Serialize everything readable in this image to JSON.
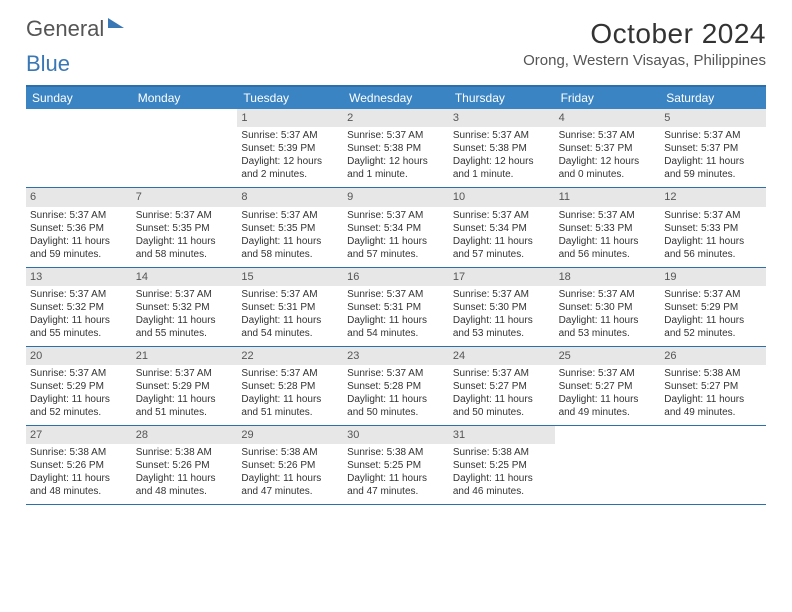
{
  "logo": {
    "part1": "General",
    "part2": "Blue"
  },
  "header": {
    "month": "October 2024",
    "location": "Orong, Western Visayas, Philippines"
  },
  "colors": {
    "accent": "#3a84c4",
    "border": "#2d6fa8",
    "daybg": "#e7e7e7",
    "text": "#333333"
  },
  "daynames": [
    "Sunday",
    "Monday",
    "Tuesday",
    "Wednesday",
    "Thursday",
    "Friday",
    "Saturday"
  ],
  "weeks": [
    [
      {
        "empty": true
      },
      {
        "empty": true
      },
      {
        "n": "1",
        "sr": "Sunrise: 5:37 AM",
        "ss": "Sunset: 5:39 PM",
        "dl": "Daylight: 12 hours and 2 minutes."
      },
      {
        "n": "2",
        "sr": "Sunrise: 5:37 AM",
        "ss": "Sunset: 5:38 PM",
        "dl": "Daylight: 12 hours and 1 minute."
      },
      {
        "n": "3",
        "sr": "Sunrise: 5:37 AM",
        "ss": "Sunset: 5:38 PM",
        "dl": "Daylight: 12 hours and 1 minute."
      },
      {
        "n": "4",
        "sr": "Sunrise: 5:37 AM",
        "ss": "Sunset: 5:37 PM",
        "dl": "Daylight: 12 hours and 0 minutes."
      },
      {
        "n": "5",
        "sr": "Sunrise: 5:37 AM",
        "ss": "Sunset: 5:37 PM",
        "dl": "Daylight: 11 hours and 59 minutes."
      }
    ],
    [
      {
        "n": "6",
        "sr": "Sunrise: 5:37 AM",
        "ss": "Sunset: 5:36 PM",
        "dl": "Daylight: 11 hours and 59 minutes."
      },
      {
        "n": "7",
        "sr": "Sunrise: 5:37 AM",
        "ss": "Sunset: 5:35 PM",
        "dl": "Daylight: 11 hours and 58 minutes."
      },
      {
        "n": "8",
        "sr": "Sunrise: 5:37 AM",
        "ss": "Sunset: 5:35 PM",
        "dl": "Daylight: 11 hours and 58 minutes."
      },
      {
        "n": "9",
        "sr": "Sunrise: 5:37 AM",
        "ss": "Sunset: 5:34 PM",
        "dl": "Daylight: 11 hours and 57 minutes."
      },
      {
        "n": "10",
        "sr": "Sunrise: 5:37 AM",
        "ss": "Sunset: 5:34 PM",
        "dl": "Daylight: 11 hours and 57 minutes."
      },
      {
        "n": "11",
        "sr": "Sunrise: 5:37 AM",
        "ss": "Sunset: 5:33 PM",
        "dl": "Daylight: 11 hours and 56 minutes."
      },
      {
        "n": "12",
        "sr": "Sunrise: 5:37 AM",
        "ss": "Sunset: 5:33 PM",
        "dl": "Daylight: 11 hours and 56 minutes."
      }
    ],
    [
      {
        "n": "13",
        "sr": "Sunrise: 5:37 AM",
        "ss": "Sunset: 5:32 PM",
        "dl": "Daylight: 11 hours and 55 minutes."
      },
      {
        "n": "14",
        "sr": "Sunrise: 5:37 AM",
        "ss": "Sunset: 5:32 PM",
        "dl": "Daylight: 11 hours and 55 minutes."
      },
      {
        "n": "15",
        "sr": "Sunrise: 5:37 AM",
        "ss": "Sunset: 5:31 PM",
        "dl": "Daylight: 11 hours and 54 minutes."
      },
      {
        "n": "16",
        "sr": "Sunrise: 5:37 AM",
        "ss": "Sunset: 5:31 PM",
        "dl": "Daylight: 11 hours and 54 minutes."
      },
      {
        "n": "17",
        "sr": "Sunrise: 5:37 AM",
        "ss": "Sunset: 5:30 PM",
        "dl": "Daylight: 11 hours and 53 minutes."
      },
      {
        "n": "18",
        "sr": "Sunrise: 5:37 AM",
        "ss": "Sunset: 5:30 PM",
        "dl": "Daylight: 11 hours and 53 minutes."
      },
      {
        "n": "19",
        "sr": "Sunrise: 5:37 AM",
        "ss": "Sunset: 5:29 PM",
        "dl": "Daylight: 11 hours and 52 minutes."
      }
    ],
    [
      {
        "n": "20",
        "sr": "Sunrise: 5:37 AM",
        "ss": "Sunset: 5:29 PM",
        "dl": "Daylight: 11 hours and 52 minutes."
      },
      {
        "n": "21",
        "sr": "Sunrise: 5:37 AM",
        "ss": "Sunset: 5:29 PM",
        "dl": "Daylight: 11 hours and 51 minutes."
      },
      {
        "n": "22",
        "sr": "Sunrise: 5:37 AM",
        "ss": "Sunset: 5:28 PM",
        "dl": "Daylight: 11 hours and 51 minutes."
      },
      {
        "n": "23",
        "sr": "Sunrise: 5:37 AM",
        "ss": "Sunset: 5:28 PM",
        "dl": "Daylight: 11 hours and 50 minutes."
      },
      {
        "n": "24",
        "sr": "Sunrise: 5:37 AM",
        "ss": "Sunset: 5:27 PM",
        "dl": "Daylight: 11 hours and 50 minutes."
      },
      {
        "n": "25",
        "sr": "Sunrise: 5:37 AM",
        "ss": "Sunset: 5:27 PM",
        "dl": "Daylight: 11 hours and 49 minutes."
      },
      {
        "n": "26",
        "sr": "Sunrise: 5:38 AM",
        "ss": "Sunset: 5:27 PM",
        "dl": "Daylight: 11 hours and 49 minutes."
      }
    ],
    [
      {
        "n": "27",
        "sr": "Sunrise: 5:38 AM",
        "ss": "Sunset: 5:26 PM",
        "dl": "Daylight: 11 hours and 48 minutes."
      },
      {
        "n": "28",
        "sr": "Sunrise: 5:38 AM",
        "ss": "Sunset: 5:26 PM",
        "dl": "Daylight: 11 hours and 48 minutes."
      },
      {
        "n": "29",
        "sr": "Sunrise: 5:38 AM",
        "ss": "Sunset: 5:26 PM",
        "dl": "Daylight: 11 hours and 47 minutes."
      },
      {
        "n": "30",
        "sr": "Sunrise: 5:38 AM",
        "ss": "Sunset: 5:25 PM",
        "dl": "Daylight: 11 hours and 47 minutes."
      },
      {
        "n": "31",
        "sr": "Sunrise: 5:38 AM",
        "ss": "Sunset: 5:25 PM",
        "dl": "Daylight: 11 hours and 46 minutes."
      },
      {
        "empty": true
      },
      {
        "empty": true
      }
    ]
  ]
}
